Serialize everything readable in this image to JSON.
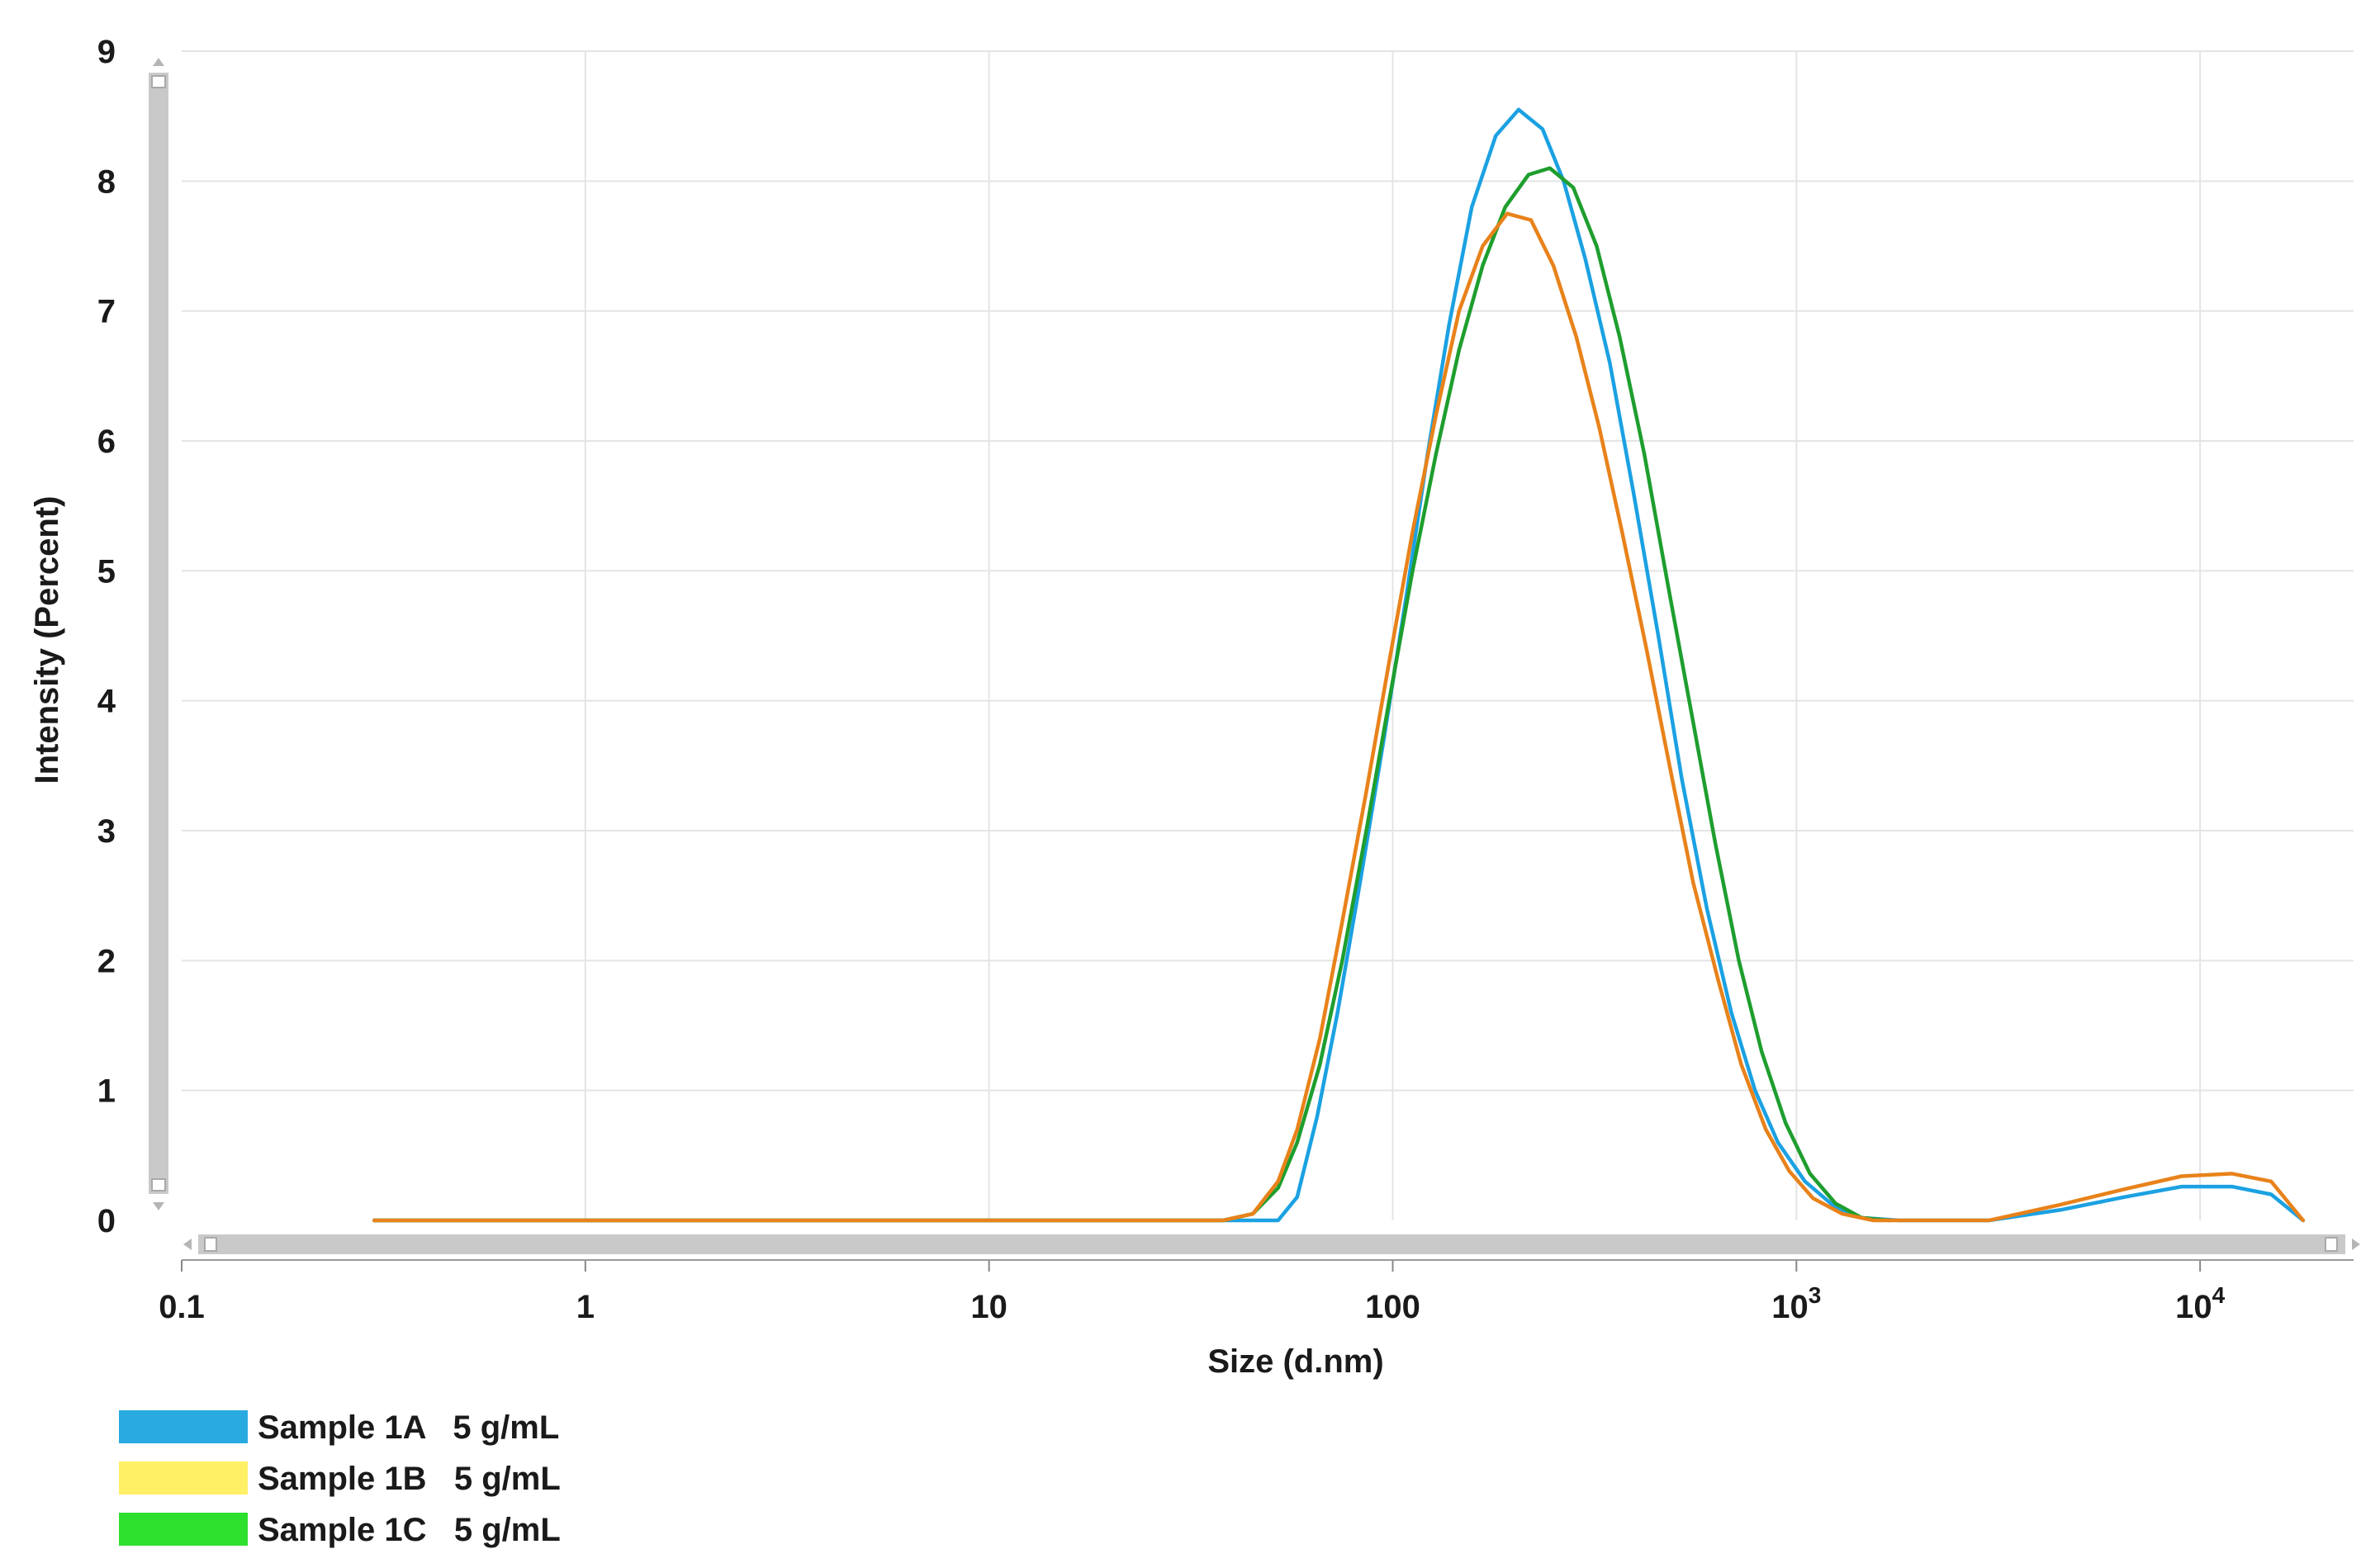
{
  "chart_data": {
    "type": "line",
    "xlabel": "Size (d.nm)",
    "ylabel": "Intensity (Percent)",
    "x_scale": "log",
    "xlim": [
      0.1,
      24000
    ],
    "ylim": [
      0,
      9
    ],
    "grid": true,
    "legend_position": "bottom-left",
    "x_ticks": [
      {
        "value": 0.1,
        "label": "0.1"
      },
      {
        "value": 1,
        "label": "1"
      },
      {
        "value": 10,
        "label": "10"
      },
      {
        "value": 100,
        "label": "100"
      },
      {
        "value": 1000,
        "label": "10",
        "exp": "3"
      },
      {
        "value": 10000,
        "label": "10",
        "exp": "4"
      }
    ],
    "y_ticks": [
      "0",
      "1",
      "2",
      "3",
      "4",
      "5",
      "6",
      "7",
      "8",
      "9"
    ],
    "series": [
      {
        "name": "Sample 1A   5 g/mL",
        "line_color": "#1ba1e2",
        "legend_color": "#29abe2",
        "points": [
          [
            0.3,
            0
          ],
          [
            40,
            0
          ],
          [
            52,
            0
          ],
          [
            58,
            0.18
          ],
          [
            65,
            0.8
          ],
          [
            73,
            1.6
          ],
          [
            83,
            2.6
          ],
          [
            95,
            3.7
          ],
          [
            108,
            4.8
          ],
          [
            122,
            5.9
          ],
          [
            138,
            6.9
          ],
          [
            157,
            7.8
          ],
          [
            180,
            8.35
          ],
          [
            205,
            8.55
          ],
          [
            235,
            8.4
          ],
          [
            265,
            8.0
          ],
          [
            300,
            7.4
          ],
          [
            345,
            6.6
          ],
          [
            395,
            5.6
          ],
          [
            455,
            4.5
          ],
          [
            520,
            3.4
          ],
          [
            600,
            2.4
          ],
          [
            690,
            1.6
          ],
          [
            790,
            1.0
          ],
          [
            900,
            0.6
          ],
          [
            1050,
            0.3
          ],
          [
            1250,
            0.1
          ],
          [
            1450,
            0.02
          ],
          [
            1800,
            0
          ],
          [
            3000,
            0
          ],
          [
            4500,
            0.08
          ],
          [
            6500,
            0.18
          ],
          [
            9000,
            0.26
          ],
          [
            12000,
            0.26
          ],
          [
            15000,
            0.2
          ],
          [
            18000,
            0
          ]
        ]
      },
      {
        "name": "Sample 1B   5 g/mL",
        "line_color": "#e8821a",
        "legend_color": "#fff066",
        "points": [
          [
            0.3,
            0
          ],
          [
            38,
            0
          ],
          [
            45,
            0.05
          ],
          [
            52,
            0.3
          ],
          [
            58,
            0.7
          ],
          [
            66,
            1.4
          ],
          [
            75,
            2.3
          ],
          [
            86,
            3.3
          ],
          [
            98,
            4.3
          ],
          [
            112,
            5.3
          ],
          [
            128,
            6.2
          ],
          [
            146,
            7.0
          ],
          [
            167,
            7.5
          ],
          [
            192,
            7.75
          ],
          [
            220,
            7.7
          ],
          [
            250,
            7.35
          ],
          [
            285,
            6.8
          ],
          [
            325,
            6.1
          ],
          [
            370,
            5.3
          ],
          [
            425,
            4.4
          ],
          [
            485,
            3.5
          ],
          [
            555,
            2.6
          ],
          [
            640,
            1.85
          ],
          [
            730,
            1.2
          ],
          [
            840,
            0.7
          ],
          [
            960,
            0.38
          ],
          [
            1100,
            0.17
          ],
          [
            1300,
            0.05
          ],
          [
            1550,
            0
          ],
          [
            3000,
            0
          ],
          [
            4500,
            0.12
          ],
          [
            6500,
            0.24
          ],
          [
            9000,
            0.34
          ],
          [
            12000,
            0.36
          ],
          [
            15000,
            0.3
          ],
          [
            18000,
            0
          ]
        ]
      },
      {
        "name": "Sample 1C   5 g/mL",
        "line_color": "#1e9e2e",
        "legend_color": "#2ee02e",
        "points": [
          [
            0.3,
            0
          ],
          [
            38,
            0
          ],
          [
            45,
            0.05
          ],
          [
            52,
            0.25
          ],
          [
            58,
            0.6
          ],
          [
            66,
            1.2
          ],
          [
            75,
            2.0
          ],
          [
            86,
            3.0
          ],
          [
            98,
            4.0
          ],
          [
            112,
            5.0
          ],
          [
            128,
            5.9
          ],
          [
            146,
            6.7
          ],
          [
            167,
            7.35
          ],
          [
            190,
            7.8
          ],
          [
            217,
            8.05
          ],
          [
            245,
            8.1
          ],
          [
            280,
            7.95
          ],
          [
            320,
            7.5
          ],
          [
            365,
            6.8
          ],
          [
            420,
            5.9
          ],
          [
            480,
            4.9
          ],
          [
            550,
            3.9
          ],
          [
            630,
            2.9
          ],
          [
            720,
            2.0
          ],
          [
            820,
            1.3
          ],
          [
            940,
            0.75
          ],
          [
            1080,
            0.36
          ],
          [
            1250,
            0.13
          ],
          [
            1450,
            0.02
          ],
          [
            1700,
            0
          ]
        ]
      }
    ]
  }
}
